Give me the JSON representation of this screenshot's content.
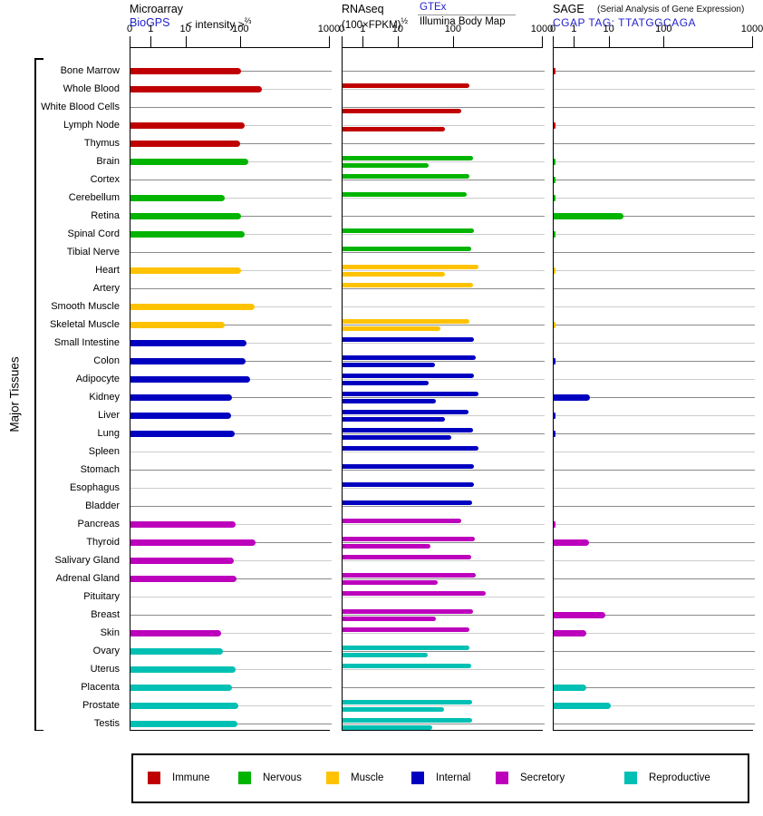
{
  "header": {
    "microarray": {
      "title": "Microarray",
      "source": "BioGPS",
      "measure": "< intensity >",
      "measure_sup": "⅔"
    },
    "rnaseq": {
      "title": "RNAseq",
      "measure": "(100×FPKM)",
      "measure_sup": "½",
      "source1": "GTEx",
      "source2": "Illumina Body Map"
    },
    "sage": {
      "title": "SAGE",
      "title_note": "(Serial Analysis of Gene Expression)",
      "source": "CGAP TAG: TTATGGCAGA"
    }
  },
  "side_label": "Major Tissues",
  "axis_tick_labels": [
    "0",
    "1",
    "10",
    "100",
    "1000"
  ],
  "group_colors": {
    "Immune": "#C00000",
    "Nervous": "#00B400",
    "Muscle": "#FFC200",
    "Internal": "#0000C0",
    "Secretory": "#BC00BC",
    "Reproductive": "#00C0B4"
  },
  "legend": [
    {
      "label": "Immune",
      "color": "#C00000"
    },
    {
      "label": "Nervous",
      "color": "#00B400"
    },
    {
      "label": "Muscle",
      "color": "#FFC200"
    },
    {
      "label": "Internal",
      "color": "#0000C0"
    },
    {
      "label": "Secretory",
      "color": "#BC00BC"
    },
    {
      "label": "Reproductive",
      "color": "#00C0B4"
    }
  ],
  "chart_data": {
    "type": "bar",
    "orientation": "horizontal",
    "scale": "log-like with zero origin, ticks 0/1/10/100/1000",
    "axis_ticks": [
      0,
      1,
      10,
      100,
      1000
    ],
    "categories": [
      "Bone Marrow",
      "Whole Blood",
      "White Blood Cells",
      "Lymph Node",
      "Thymus",
      "Brain",
      "Cortex",
      "Cerebellum",
      "Retina",
      "Spinal Cord",
      "Tibial Nerve",
      "Heart",
      "Artery",
      "Smooth Muscle",
      "Skeletal Muscle",
      "Small Intestine",
      "Colon",
      "Adipocyte",
      "Kidney",
      "Liver",
      "Lung",
      "Spleen",
      "Stomach",
      "Esophagus",
      "Bladder",
      "Pancreas",
      "Thyroid",
      "Salivary Gland",
      "Adrenal Gland",
      "Pituitary",
      "Breast",
      "Skin",
      "Ovary",
      "Uterus",
      "Placenta",
      "Prostate",
      "Testis"
    ],
    "groups": [
      "Immune",
      "Immune",
      "Immune",
      "Immune",
      "Immune",
      "Nervous",
      "Nervous",
      "Nervous",
      "Nervous",
      "Nervous",
      "Nervous",
      "Muscle",
      "Muscle",
      "Muscle",
      "Muscle",
      "Internal",
      "Internal",
      "Internal",
      "Internal",
      "Internal",
      "Internal",
      "Internal",
      "Internal",
      "Internal",
      "Internal",
      "Secretory",
      "Secretory",
      "Secretory",
      "Secretory",
      "Secretory",
      "Secretory",
      "Secretory",
      "Reproductive",
      "Reproductive",
      "Reproductive",
      "Reproductive",
      "Reproductive"
    ],
    "series": [
      {
        "name": "Microarray BioGPS",
        "values": [
          100,
          170,
          null,
          110,
          95,
          120,
          null,
          50,
          100,
          110,
          null,
          100,
          null,
          140,
          50,
          115,
          112,
          125,
          68,
          66,
          77,
          null,
          null,
          null,
          null,
          80,
          145,
          74,
          83,
          null,
          null,
          43,
          47,
          80,
          68,
          89,
          86
        ]
      },
      {
        "name": "RNAseq GTEx",
        "values": [
          null,
          150,
          null,
          null,
          null,
          165,
          150,
          140,
          null,
          170,
          155,
          190,
          165,
          null,
          150,
          170,
          178,
          170,
          190,
          145,
          165,
          190,
          170,
          170,
          160,
          120,
          172,
          158,
          178,
          230,
          165,
          148,
          148,
          155,
          null,
          162,
          160
        ]
      },
      {
        "name": "RNAseq Illumina Body Map",
        "values": [
          null,
          null,
          120,
          70,
          null,
          35,
          null,
          null,
          null,
          null,
          null,
          70,
          null,
          null,
          58,
          null,
          45,
          35,
          48,
          68,
          90,
          null,
          null,
          null,
          null,
          null,
          38,
          null,
          50,
          null,
          47,
          null,
          33,
          null,
          null,
          66,
          41
        ]
      },
      {
        "name": "SAGE CGAP",
        "values": [
          0.1,
          null,
          null,
          0.1,
          null,
          0.1,
          0.1,
          0.1,
          18,
          0.1,
          null,
          0.1,
          null,
          null,
          0.1,
          null,
          0.1,
          null,
          2.8,
          0.1,
          0.1,
          null,
          null,
          null,
          null,
          0.1,
          2.5,
          null,
          null,
          null,
          7.5,
          2.1,
          null,
          null,
          2.1,
          10.5,
          null
        ]
      }
    ]
  }
}
